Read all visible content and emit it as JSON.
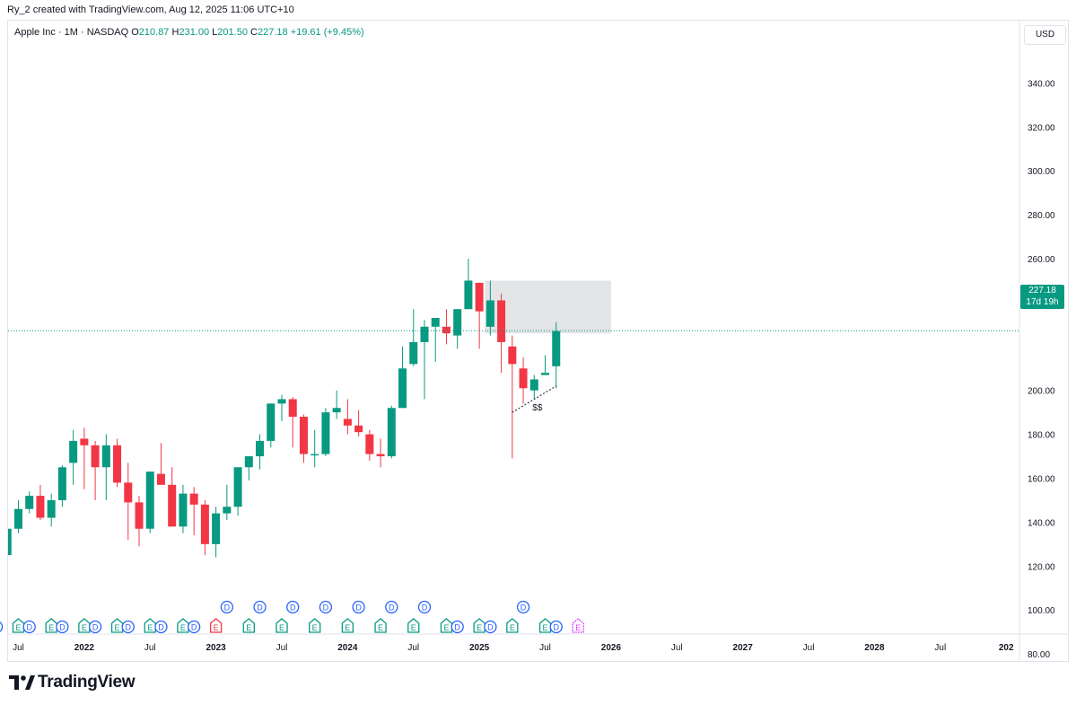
{
  "caption": "Ry_2 created with TradingView.com, Aug 12, 2025 11:06 UTC+10",
  "legend": {
    "symbol": "Apple Inc · 1M · NASDAQ",
    "o_label": "O",
    "o_value": "210.87",
    "h_label": "H",
    "h_value": "231.00",
    "l_label": "L",
    "l_value": "201.50",
    "c_label": "C",
    "c_value": "227.18",
    "change": "+19.61 (+9.45%)"
  },
  "currency": "USD",
  "price_tag": {
    "price": "227.18",
    "countdown": "17d 19h"
  },
  "brand": "TradingView",
  "colors": {
    "up": "#089981",
    "down": "#f23645",
    "line": "#089981",
    "zone": "#dfe1e3",
    "div": "#2962ff",
    "earn": "#089981",
    "earn_neg": "#f23645",
    "future": "#e040fb"
  },
  "chart_data": {
    "type": "candlestick",
    "symbol": "Apple Inc",
    "interval": "1M",
    "exchange": "NASDAQ",
    "y_ticks": [
      80,
      100,
      120,
      140,
      160,
      180,
      200,
      220,
      240,
      260,
      280,
      300,
      320,
      340
    ],
    "y_tick_labels": [
      "80.00",
      "100.00",
      "120.00",
      "140.00",
      "160.00",
      "180.00",
      "200.00",
      "",
      "240.00",
      "260.00",
      "280.00",
      "300.00",
      "320.00",
      "340.00"
    ],
    "ylim": [
      75,
      345
    ],
    "x_labels": [
      {
        "text": "Jul",
        "date": "2021-07"
      },
      {
        "text": "2022",
        "date": "2022-01"
      },
      {
        "text": "Jul",
        "date": "2022-07"
      },
      {
        "text": "2023",
        "date": "2023-01"
      },
      {
        "text": "Jul",
        "date": "2023-07"
      },
      {
        "text": "2024",
        "date": "2024-01"
      },
      {
        "text": "Jul",
        "date": "2024-07"
      },
      {
        "text": "2025",
        "date": "2025-01"
      },
      {
        "text": "Jul",
        "date": "2025-07"
      },
      {
        "text": "2026",
        "date": "2026-01"
      },
      {
        "text": "Jul",
        "date": "2026-07"
      },
      {
        "text": "2027",
        "date": "2027-01"
      },
      {
        "text": "Jul",
        "date": "2027-07"
      },
      {
        "text": "2028",
        "date": "2028-01"
      },
      {
        "text": "Jul",
        "date": "2028-07"
      },
      {
        "text": "202",
        "date": "2029-01"
      }
    ],
    "candles": [
      {
        "d": "2021-05",
        "o": 132,
        "h": 134,
        "l": 122,
        "c": 124
      },
      {
        "d": "2021-06",
        "o": 125,
        "h": 137,
        "l": 123,
        "c": 137
      },
      {
        "d": "2021-07",
        "o": 137,
        "h": 150,
        "l": 135,
        "c": 146
      },
      {
        "d": "2021-08",
        "o": 146,
        "h": 154,
        "l": 144,
        "c": 152
      },
      {
        "d": "2021-09",
        "o": 152,
        "h": 157,
        "l": 141,
        "c": 142
      },
      {
        "d": "2021-10",
        "o": 142,
        "h": 153,
        "l": 138,
        "c": 150
      },
      {
        "d": "2021-11",
        "o": 150,
        "h": 166,
        "l": 147,
        "c": 165
      },
      {
        "d": "2021-12",
        "o": 167,
        "h": 182,
        "l": 157,
        "c": 177
      },
      {
        "d": "2022-01",
        "o": 178,
        "h": 183,
        "l": 155,
        "c": 175
      },
      {
        "d": "2022-02",
        "o": 175,
        "h": 177,
        "l": 150,
        "c": 165
      },
      {
        "d": "2022-03",
        "o": 165,
        "h": 180,
        "l": 150,
        "c": 175
      },
      {
        "d": "2022-04",
        "o": 175,
        "h": 178,
        "l": 156,
        "c": 158
      },
      {
        "d": "2022-05",
        "o": 158,
        "h": 167,
        "l": 132,
        "c": 149
      },
      {
        "d": "2022-06",
        "o": 149,
        "h": 152,
        "l": 129,
        "c": 137
      },
      {
        "d": "2022-07",
        "o": 137,
        "h": 163,
        "l": 135,
        "c": 163
      },
      {
        "d": "2022-08",
        "o": 162,
        "h": 176,
        "l": 157,
        "c": 157
      },
      {
        "d": "2022-09",
        "o": 157,
        "h": 165,
        "l": 138,
        "c": 138
      },
      {
        "d": "2022-10",
        "o": 138,
        "h": 157,
        "l": 135,
        "c": 153
      },
      {
        "d": "2022-11",
        "o": 153,
        "h": 156,
        "l": 134,
        "c": 148
      },
      {
        "d": "2022-12",
        "o": 148,
        "h": 150,
        "l": 125,
        "c": 130
      },
      {
        "d": "2023-01",
        "o": 130,
        "h": 147,
        "l": 124,
        "c": 144
      },
      {
        "d": "2023-02",
        "o": 144,
        "h": 157,
        "l": 141,
        "c": 147
      },
      {
        "d": "2023-03",
        "o": 147,
        "h": 165,
        "l": 143,
        "c": 165
      },
      {
        "d": "2023-04",
        "o": 165,
        "h": 170,
        "l": 159,
        "c": 170
      },
      {
        "d": "2023-05",
        "o": 170,
        "h": 180,
        "l": 164,
        "c": 177
      },
      {
        "d": "2023-06",
        "o": 177,
        "h": 194,
        "l": 174,
        "c": 194
      },
      {
        "d": "2023-07",
        "o": 194,
        "h": 198,
        "l": 186,
        "c": 196
      },
      {
        "d": "2023-08",
        "o": 196,
        "h": 197,
        "l": 174,
        "c": 188
      },
      {
        "d": "2023-09",
        "o": 188,
        "h": 189,
        "l": 167,
        "c": 171
      },
      {
        "d": "2023-10",
        "o": 171,
        "h": 182,
        "l": 165,
        "c": 171
      },
      {
        "d": "2023-11",
        "o": 171,
        "h": 192,
        "l": 170,
        "c": 190
      },
      {
        "d": "2023-12",
        "o": 190,
        "h": 200,
        "l": 187,
        "c": 192
      },
      {
        "d": "2024-01",
        "o": 187,
        "h": 196,
        "l": 180,
        "c": 184
      },
      {
        "d": "2024-02",
        "o": 184,
        "h": 191,
        "l": 179,
        "c": 181
      },
      {
        "d": "2024-03",
        "o": 180,
        "h": 182,
        "l": 168,
        "c": 171
      },
      {
        "d": "2024-04",
        "o": 171,
        "h": 178,
        "l": 165,
        "c": 170
      },
      {
        "d": "2024-05",
        "o": 170,
        "h": 193,
        "l": 169,
        "c": 192
      },
      {
        "d": "2024-06",
        "o": 192,
        "h": 220,
        "l": 192,
        "c": 210
      },
      {
        "d": "2024-07",
        "o": 212,
        "h": 237,
        "l": 211,
        "c": 222
      },
      {
        "d": "2024-08",
        "o": 222,
        "h": 232,
        "l": 196,
        "c": 229
      },
      {
        "d": "2024-09",
        "o": 229,
        "h": 233,
        "l": 213,
        "c": 233
      },
      {
        "d": "2024-10",
        "o": 229,
        "h": 237,
        "l": 221,
        "c": 226
      },
      {
        "d": "2024-11",
        "o": 225,
        "h": 237,
        "l": 219,
        "c": 237
      },
      {
        "d": "2024-12",
        "o": 237,
        "h": 260,
        "l": 237,
        "c": 250
      },
      {
        "d": "2025-01",
        "o": 249,
        "h": 249,
        "l": 219,
        "c": 236
      },
      {
        "d": "2025-02",
        "o": 229,
        "h": 250,
        "l": 225,
        "c": 241
      },
      {
        "d": "2025-03",
        "o": 241,
        "h": 244,
        "l": 208,
        "c": 222
      },
      {
        "d": "2025-04",
        "o": 220,
        "h": 225,
        "l": 169,
        "c": 212
      },
      {
        "d": "2025-05",
        "o": 210,
        "h": 215,
        "l": 194,
        "c": 201
      },
      {
        "d": "2025-06",
        "o": 200,
        "h": 207,
        "l": 196,
        "c": 205
      },
      {
        "d": "2025-07",
        "o": 207,
        "h": 216,
        "l": 207,
        "c": 208
      },
      {
        "d": "2025-08",
        "o": 211,
        "h": 231,
        "l": 201,
        "c": 227
      }
    ],
    "current_price": 227.18,
    "zone": {
      "from": "2025-01",
      "to": "2026-01",
      "low": 226,
      "high": 250
    },
    "trendline": {
      "from": {
        "d": "2025-04",
        "v": 190
      },
      "to": {
        "d": "2025-08",
        "v": 202
      },
      "label": "$$"
    },
    "events_top": [
      {
        "type": "D",
        "d": "2023-02"
      },
      {
        "type": "D",
        "d": "2023-05"
      },
      {
        "type": "D",
        "d": "2023-08"
      },
      {
        "type": "D",
        "d": "2023-11"
      },
      {
        "type": "D",
        "d": "2024-02"
      },
      {
        "type": "D",
        "d": "2024-05"
      },
      {
        "type": "D",
        "d": "2024-08"
      },
      {
        "type": "D",
        "d": "2025-05"
      }
    ],
    "events_bottom": [
      {
        "type": "D",
        "d": "2021-05"
      },
      {
        "type": "E",
        "d": "2021-07"
      },
      {
        "type": "D",
        "d": "2021-08"
      },
      {
        "type": "E",
        "d": "2021-10"
      },
      {
        "type": "D",
        "d": "2021-11"
      },
      {
        "type": "E",
        "d": "2022-01"
      },
      {
        "type": "D",
        "d": "2022-02"
      },
      {
        "type": "E",
        "d": "2022-04"
      },
      {
        "type": "D",
        "d": "2022-05"
      },
      {
        "type": "E",
        "d": "2022-07"
      },
      {
        "type": "D",
        "d": "2022-08"
      },
      {
        "type": "E",
        "d": "2022-10"
      },
      {
        "type": "D",
        "d": "2022-11"
      },
      {
        "type": "E",
        "d": "2023-01",
        "neg": true
      },
      {
        "type": "E",
        "d": "2023-04"
      },
      {
        "type": "E",
        "d": "2023-07"
      },
      {
        "type": "E",
        "d": "2023-10"
      },
      {
        "type": "E",
        "d": "2024-01"
      },
      {
        "type": "E",
        "d": "2024-04"
      },
      {
        "type": "E",
        "d": "2024-07"
      },
      {
        "type": "E",
        "d": "2024-10"
      },
      {
        "type": "D",
        "d": "2024-11"
      },
      {
        "type": "E",
        "d": "2025-01"
      },
      {
        "type": "D",
        "d": "2025-02"
      },
      {
        "type": "E",
        "d": "2025-04"
      },
      {
        "type": "E",
        "d": "2025-07"
      },
      {
        "type": "D",
        "d": "2025-08"
      },
      {
        "type": "E",
        "d": "2025-10",
        "future": true
      }
    ]
  }
}
